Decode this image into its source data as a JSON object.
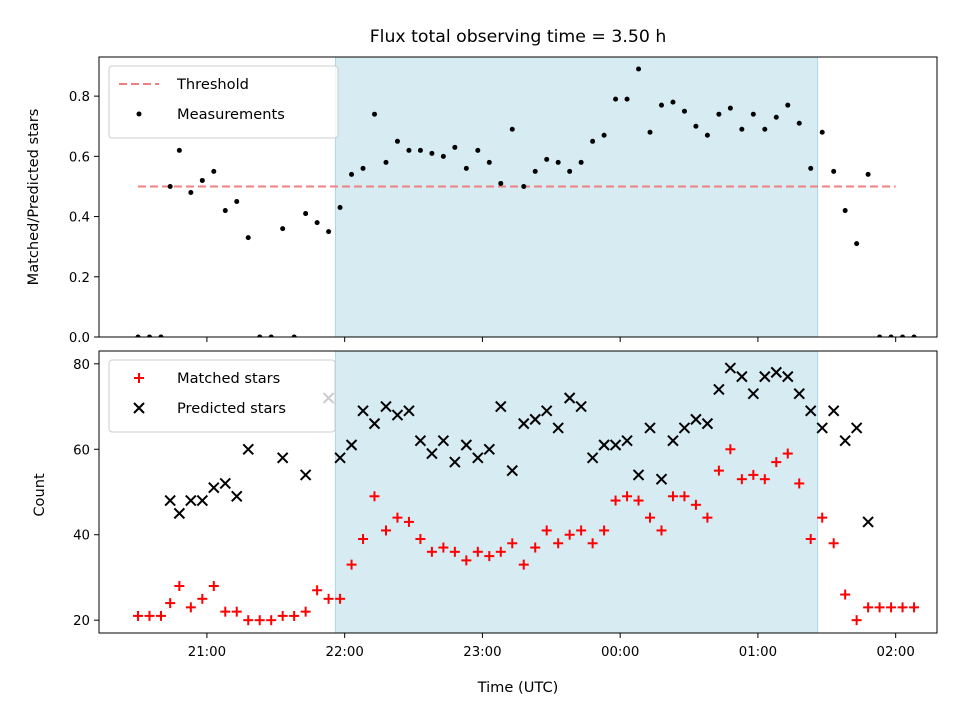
{
  "colors": {
    "threshold": "#f08080",
    "measurements": "#000000",
    "matched": "#ff0000",
    "predicted": "#000000",
    "observing_window": "#add8e6"
  },
  "chart_data": [
    {
      "type": "scatter",
      "title": "Flux total observing time = 3.50 h",
      "xlabel": "",
      "ylabel": "Matched/Predicted stars",
      "xlim": [
        "20:13",
        "02:18"
      ],
      "ylim": [
        0,
        0.93
      ],
      "yticks": [
        "0.0",
        "0.2",
        "0.4",
        "0.6",
        "0.8"
      ],
      "grid": false,
      "legend_position": "top-left",
      "observing_window": [
        "21:56",
        "01:26"
      ],
      "threshold": {
        "name": "Threshold",
        "y": 0.5,
        "x_range": [
          "20:30",
          "02:00"
        ]
      },
      "series": [
        {
          "name": "Measurements",
          "points": [
            [
              "20:30",
              0
            ],
            [
              "20:35",
              0
            ],
            [
              "20:40",
              0
            ],
            [
              "20:44",
              0.5
            ],
            [
              "20:48",
              0.62
            ],
            [
              "20:53",
              0.48
            ],
            [
              "20:58",
              0.52
            ],
            [
              "21:03",
              0.55
            ],
            [
              "21:08",
              0.42
            ],
            [
              "21:13",
              0.45
            ],
            [
              "21:18",
              0.33
            ],
            [
              "21:23",
              0
            ],
            [
              "21:28",
              0
            ],
            [
              "21:33",
              0.36
            ],
            [
              "21:38",
              0
            ],
            [
              "21:43",
              0.41
            ],
            [
              "21:48",
              0.38
            ],
            [
              "21:53",
              0.35
            ],
            [
              "21:58",
              0.43
            ],
            [
              "22:03",
              0.54
            ],
            [
              "22:08",
              0.56
            ],
            [
              "22:13",
              0.74
            ],
            [
              "22:18",
              0.58
            ],
            [
              "22:23",
              0.65
            ],
            [
              "22:28",
              0.62
            ],
            [
              "22:33",
              0.62
            ],
            [
              "22:38",
              0.61
            ],
            [
              "22:43",
              0.6
            ],
            [
              "22:48",
              0.63
            ],
            [
              "22:53",
              0.56
            ],
            [
              "22:58",
              0.62
            ],
            [
              "23:03",
              0.58
            ],
            [
              "23:08",
              0.51
            ],
            [
              "23:13",
              0.69
            ],
            [
              "23:18",
              0.5
            ],
            [
              "23:23",
              0.55
            ],
            [
              "23:28",
              0.59
            ],
            [
              "23:33",
              0.58
            ],
            [
              "23:38",
              0.55
            ],
            [
              "23:43",
              0.58
            ],
            [
              "23:48",
              0.65
            ],
            [
              "23:53",
              0.67
            ],
            [
              "23:58",
              0.79
            ],
            [
              "00:03",
              0.79
            ],
            [
              "00:08",
              0.89
            ],
            [
              "00:13",
              0.68
            ],
            [
              "00:18",
              0.77
            ],
            [
              "00:23",
              0.78
            ],
            [
              "00:28",
              0.75
            ],
            [
              "00:33",
              0.7
            ],
            [
              "00:38",
              0.67
            ],
            [
              "00:43",
              0.74
            ],
            [
              "00:48",
              0.76
            ],
            [
              "00:53",
              0.69
            ],
            [
              "00:58",
              0.74
            ],
            [
              "01:03",
              0.69
            ],
            [
              "01:08",
              0.73
            ],
            [
              "01:13",
              0.77
            ],
            [
              "01:18",
              0.71
            ],
            [
              "01:23",
              0.56
            ],
            [
              "01:28",
              0.68
            ],
            [
              "01:33",
              0.55
            ],
            [
              "01:38",
              0.42
            ],
            [
              "01:43",
              0.31
            ],
            [
              "01:48",
              0.54
            ],
            [
              "01:53",
              0
            ],
            [
              "01:58",
              0
            ],
            [
              "02:03",
              0
            ],
            [
              "02:08",
              0
            ]
          ]
        }
      ]
    },
    {
      "type": "scatter",
      "title": "",
      "xlabel": "Time (UTC)",
      "ylabel": "Count",
      "xlim": [
        "20:13",
        "02:18"
      ],
      "ylim": [
        17,
        83
      ],
      "xticks": [
        "21:00",
        "22:00",
        "23:00",
        "00:00",
        "01:00",
        "02:00"
      ],
      "yticks": [
        "20",
        "40",
        "60",
        "80"
      ],
      "grid": false,
      "legend_position": "top-left",
      "observing_window": [
        "21:56",
        "01:26"
      ],
      "series": [
        {
          "name": "Matched stars",
          "marker": "plus",
          "points": [
            [
              "20:30",
              21
            ],
            [
              "20:35",
              21
            ],
            [
              "20:40",
              21
            ],
            [
              "20:44",
              24
            ],
            [
              "20:48",
              28
            ],
            [
              "20:53",
              23
            ],
            [
              "20:58",
              25
            ],
            [
              "21:03",
              28
            ],
            [
              "21:08",
              22
            ],
            [
              "21:13",
              22
            ],
            [
              "21:18",
              20
            ],
            [
              "21:23",
              20
            ],
            [
              "21:28",
              20
            ],
            [
              "21:33",
              21
            ],
            [
              "21:38",
              21
            ],
            [
              "21:43",
              22
            ],
            [
              "21:48",
              27
            ],
            [
              "21:53",
              25
            ],
            [
              "21:58",
              25
            ],
            [
              "22:03",
              33
            ],
            [
              "22:08",
              39
            ],
            [
              "22:13",
              49
            ],
            [
              "22:18",
              41
            ],
            [
              "22:23",
              44
            ],
            [
              "22:28",
              43
            ],
            [
              "22:33",
              39
            ],
            [
              "22:38",
              36
            ],
            [
              "22:43",
              37
            ],
            [
              "22:48",
              36
            ],
            [
              "22:53",
              34
            ],
            [
              "22:58",
              36
            ],
            [
              "23:03",
              35
            ],
            [
              "23:08",
              36
            ],
            [
              "23:13",
              38
            ],
            [
              "23:18",
              33
            ],
            [
              "23:23",
              37
            ],
            [
              "23:28",
              41
            ],
            [
              "23:33",
              38
            ],
            [
              "23:38",
              40
            ],
            [
              "23:43",
              41
            ],
            [
              "23:48",
              38
            ],
            [
              "23:53",
              41
            ],
            [
              "23:58",
              48
            ],
            [
              "00:03",
              49
            ],
            [
              "00:08",
              48
            ],
            [
              "00:13",
              44
            ],
            [
              "00:18",
              41
            ],
            [
              "00:23",
              49
            ],
            [
              "00:28",
              49
            ],
            [
              "00:33",
              47
            ],
            [
              "00:38",
              44
            ],
            [
              "00:43",
              55
            ],
            [
              "00:48",
              60
            ],
            [
              "00:53",
              53
            ],
            [
              "00:58",
              54
            ],
            [
              "01:03",
              53
            ],
            [
              "01:08",
              57
            ],
            [
              "01:13",
              59
            ],
            [
              "01:18",
              52
            ],
            [
              "01:23",
              39
            ],
            [
              "01:28",
              44
            ],
            [
              "01:33",
              38
            ],
            [
              "01:38",
              26
            ],
            [
              "01:43",
              20
            ],
            [
              "01:48",
              23
            ],
            [
              "01:53",
              23
            ],
            [
              "01:58",
              23
            ],
            [
              "02:03",
              23
            ],
            [
              "02:08",
              23
            ]
          ]
        },
        {
          "name": "Predicted stars",
          "marker": "x",
          "points": [
            [
              "20:44",
              48
            ],
            [
              "20:48",
              45
            ],
            [
              "20:53",
              48
            ],
            [
              "20:58",
              48
            ],
            [
              "21:03",
              51
            ],
            [
              "21:08",
              52
            ],
            [
              "21:13",
              49
            ],
            [
              "21:18",
              60
            ],
            [
              "21:33",
              58
            ],
            [
              "21:43",
              54
            ],
            [
              "21:53",
              72
            ],
            [
              "21:58",
              58
            ],
            [
              "22:03",
              61
            ],
            [
              "22:08",
              69
            ],
            [
              "22:13",
              66
            ],
            [
              "22:18",
              70
            ],
            [
              "22:23",
              68
            ],
            [
              "22:28",
              69
            ],
            [
              "22:33",
              62
            ],
            [
              "22:38",
              59
            ],
            [
              "22:43",
              62
            ],
            [
              "22:48",
              57
            ],
            [
              "22:53",
              61
            ],
            [
              "22:58",
              58
            ],
            [
              "23:03",
              60
            ],
            [
              "23:08",
              70
            ],
            [
              "23:13",
              55
            ],
            [
              "23:18",
              66
            ],
            [
              "23:23",
              67
            ],
            [
              "23:28",
              69
            ],
            [
              "23:33",
              65
            ],
            [
              "23:38",
              72
            ],
            [
              "23:43",
              70
            ],
            [
              "23:48",
              58
            ],
            [
              "23:53",
              61
            ],
            [
              "23:58",
              61
            ],
            [
              "00:03",
              62
            ],
            [
              "00:08",
              54
            ],
            [
              "00:13",
              65
            ],
            [
              "00:18",
              53
            ],
            [
              "00:23",
              62
            ],
            [
              "00:28",
              65
            ],
            [
              "00:33",
              67
            ],
            [
              "00:38",
              66
            ],
            [
              "00:43",
              74
            ],
            [
              "00:48",
              79
            ],
            [
              "00:53",
              77
            ],
            [
              "00:58",
              73
            ],
            [
              "01:03",
              77
            ],
            [
              "01:08",
              78
            ],
            [
              "01:13",
              77
            ],
            [
              "01:18",
              73
            ],
            [
              "01:23",
              69
            ],
            [
              "01:28",
              65
            ],
            [
              "01:33",
              69
            ],
            [
              "01:38",
              62
            ],
            [
              "01:43",
              65
            ],
            [
              "01:48",
              43
            ]
          ]
        }
      ]
    }
  ]
}
